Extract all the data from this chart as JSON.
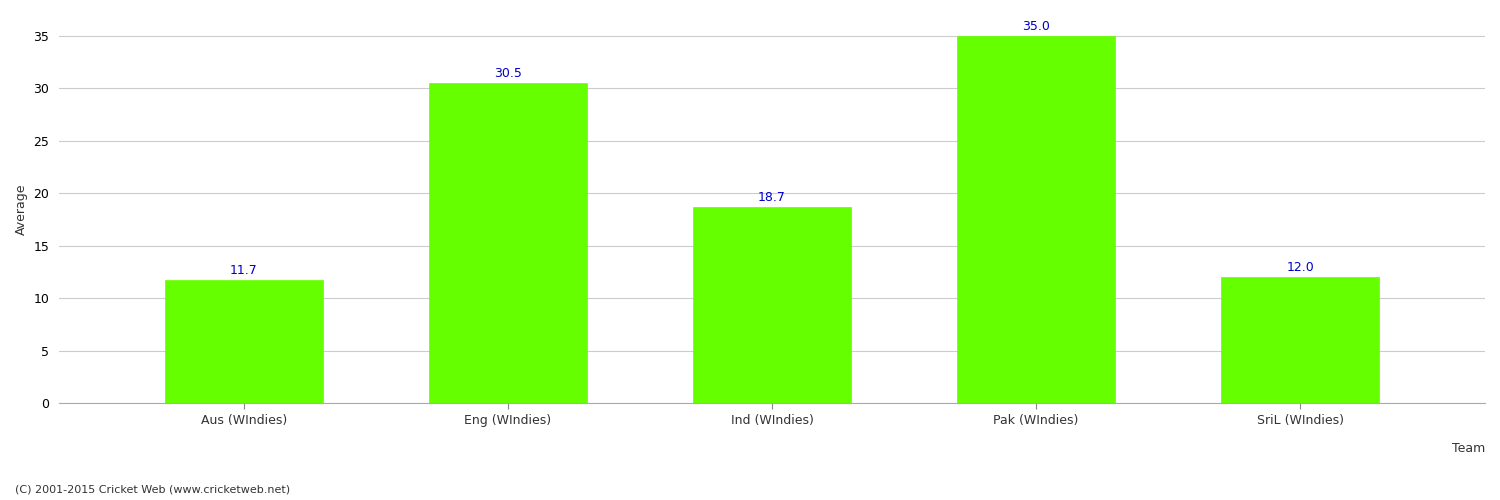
{
  "categories": [
    "Aus (WIndies)",
    "Eng (WIndies)",
    "Ind (WIndies)",
    "Pak (WIndies)",
    "SriL (WIndies)"
  ],
  "values": [
    11.7,
    30.5,
    18.7,
    35.0,
    12.0
  ],
  "bar_color": "#66ff00",
  "bar_edge_color": "#66ff00",
  "label_color": "#0000cc",
  "ylabel": "Average",
  "xlabel": "Team",
  "ylim": [
    0,
    37
  ],
  "yticks": [
    0,
    5,
    10,
    15,
    20,
    25,
    30,
    35
  ],
  "grid_color": "#cccccc",
  "background_color": "#ffffff",
  "label_fontsize": 9,
  "axis_fontsize": 9,
  "tick_fontsize": 9,
  "footer_text": "(C) 2001-2015 Cricket Web (www.cricketweb.net)",
  "footer_fontsize": 8,
  "footer_color": "#333333",
  "bar_width": 0.6
}
